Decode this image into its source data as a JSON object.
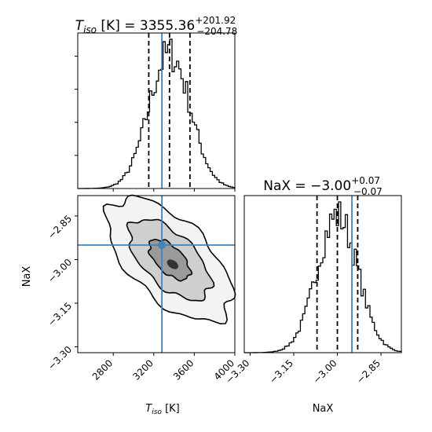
{
  "chart_data": {
    "type": "corner",
    "parameters": [
      {
        "name_main": "T",
        "name_sub": "iso",
        "unit": "[K]",
        "title_value": "3355.36",
        "title_upper": "+201.92",
        "title_lower": "−204.78",
        "median": 3355.36,
        "q16": 3150.58,
        "q84": 3557.28,
        "truth": 3280,
        "range": [
          2450,
          4000
        ],
        "ticks": [
          2800,
          3200,
          3600,
          4000
        ],
        "tick_labels": [
          "2800",
          "3200",
          "3600",
          "4000"
        ],
        "xlabel_main": "T",
        "xlabel_sub": "iso",
        "xlabel_unit": "[K]"
      },
      {
        "name": "NaX",
        "title_prefix": "NaX = ",
        "title_value": "−3.00",
        "title_upper": "+0.07",
        "title_lower": "−0.07",
        "median": -3.0,
        "q16": -3.07,
        "q84": -2.93,
        "truth": -2.95,
        "range": [
          -3.32,
          -2.78
        ],
        "ticks": [
          -3.3,
          -3.15,
          -3.0,
          -2.85
        ],
        "tick_labels": [
          "−3.30",
          "−3.15",
          "−3.00",
          "−2.85"
        ],
        "xlabel": "NaX",
        "ylabel": "NaX"
      }
    ],
    "truth_color": "#4682b4",
    "hist_color": "#000000",
    "quantile_style": "dashed",
    "bins": 70,
    "contour_levels": [
      0.39,
      0.86,
      0.99
    ],
    "correlation": -0.6
  }
}
